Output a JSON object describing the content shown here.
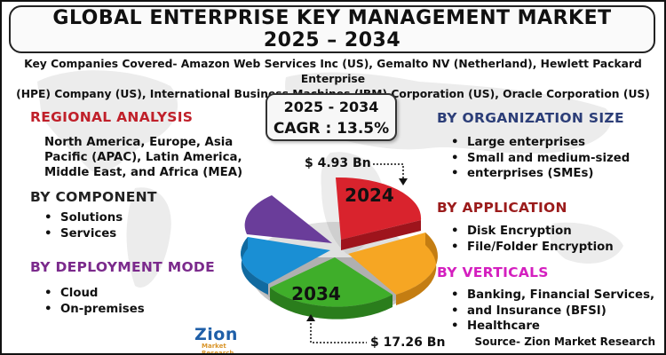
{
  "title": {
    "line1": "GLOBAL ENTERPRISE KEY MANAGEMENT MARKET",
    "line2": "2025 – 2034"
  },
  "companies": {
    "line1": "Key Companies Covered- Amazon Web Services Inc (US), Gemalto NV (Netherland), Hewlett Packard Enterprise",
    "line2": "(HPE) Company (US), International Business Machines (IBM) Corporation (US), Oracle Corporation (US)"
  },
  "cagr": {
    "years": "2025 - 2034",
    "value": "CAGR : 13.5%"
  },
  "regional": {
    "heading": "REGIONAL ANALYSIS",
    "lines": [
      "North America, Europe, Asia",
      "Pacific (APAC), Latin America,",
      "Middle East, and Africa (MEA)"
    ]
  },
  "component": {
    "heading": "BY COMPONENT",
    "items": [
      "Solutions",
      "Services"
    ]
  },
  "deployment": {
    "heading": "BY DEPLOYMENT MODE",
    "items": [
      "Cloud",
      "On-premises"
    ]
  },
  "organization": {
    "heading": "BY ORGANIZATION SIZE",
    "items": [
      "Large enterprises",
      "Small and medium-sized",
      "enterprises (SMEs)"
    ]
  },
  "application": {
    "heading": "BY APPLICATION",
    "items": [
      "Disk Encryption",
      "File/Folder Encryption"
    ]
  },
  "verticals": {
    "heading": "BY VERTICALS",
    "items": [
      "Banking, Financial Services,",
      "and Insurance (BFSI)",
      "Healthcare"
    ]
  },
  "pie": {
    "label_2024": "2024",
    "label_2034": "2034",
    "value_2024": "$ 4.93 Bn",
    "value_2034": "$ 17.26 Bn"
  },
  "logo": {
    "name": "Zion",
    "sub": "Market Research"
  },
  "source": "Source- Zion Market Research",
  "colors": {
    "regional": "#c0202a",
    "component": "#222222",
    "deployment": "#7b2a8c",
    "organization": "#2c3e78",
    "application": "#9b1b1b",
    "verticals": "#d41fbf",
    "slice_red": "#d9232d",
    "slice_orange": "#f6a623",
    "slice_green": "#3fae2a",
    "slice_blue": "#1a8fd4",
    "slice_purple": "#6a3d9a"
  }
}
